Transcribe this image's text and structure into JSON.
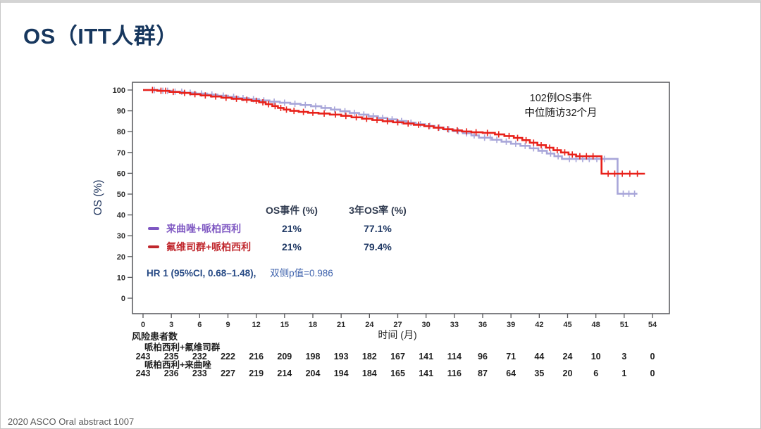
{
  "slide": {
    "title": "OS（ITT人群）",
    "footer": "2020 ASCO Oral abstract 1007"
  },
  "annotation": {
    "line1": "102例OS事件",
    "line2": "中位随访32个月"
  },
  "legend": {
    "col1_header": "OS事件 (%)",
    "col2_header": "3年OS率 (%)",
    "rows": [
      {
        "label": "来曲唑+哌柏西利",
        "os_events": "21%",
        "os_rate_3yr": "77.1%",
        "marker_color": "#7e57c2"
      },
      {
        "label": "氟维司群+哌柏西利",
        "os_events": "21%",
        "os_rate_3yr": "79.4%",
        "marker_color": "#c0272d"
      }
    ],
    "hr_text": "HR 1 (95%CI, 0.68–1.48),",
    "p_text": "双侧p值=0.986"
  },
  "chart_data": {
    "type": "line",
    "subtype": "kaplan-meier-step",
    "title": "",
    "xlabel": "时间 (月)",
    "ylabel": "OS (%)",
    "xlim": [
      0,
      54
    ],
    "ylim": [
      0,
      100
    ],
    "x_ticks": [
      0,
      3,
      6,
      9,
      12,
      15,
      18,
      21,
      24,
      27,
      30,
      33,
      36,
      39,
      42,
      45,
      48,
      51,
      54
    ],
    "y_ticks": [
      0,
      10,
      20,
      30,
      40,
      50,
      60,
      70,
      80,
      90,
      100
    ],
    "grid": false,
    "legend_position": "inside-left",
    "series": [
      {
        "name": "来曲唑+哌柏西利",
        "color": "#a8a6d9",
        "end": 52.4,
        "steps": [
          [
            0,
            100
          ],
          [
            1.8,
            99.6
          ],
          [
            3.1,
            99.2
          ],
          [
            4.4,
            98.7
          ],
          [
            5.6,
            98.3
          ],
          [
            6.8,
            97.8
          ],
          [
            7.9,
            97.3
          ],
          [
            9.0,
            96.7
          ],
          [
            10.1,
            96.1
          ],
          [
            11.2,
            95.6
          ],
          [
            12.3,
            95.0
          ],
          [
            13.4,
            94.4
          ],
          [
            14.5,
            93.9
          ],
          [
            15.6,
            93.4
          ],
          [
            16.7,
            92.8
          ],
          [
            17.8,
            92.2
          ],
          [
            18.9,
            91.4
          ],
          [
            19.9,
            90.6
          ],
          [
            20.9,
            89.8
          ],
          [
            21.9,
            89.0
          ],
          [
            22.9,
            88.2
          ],
          [
            23.9,
            87.4
          ],
          [
            24.9,
            86.6
          ],
          [
            25.9,
            85.9
          ],
          [
            26.9,
            85.1
          ],
          [
            27.9,
            84.3
          ],
          [
            28.9,
            83.6
          ],
          [
            29.9,
            82.8
          ],
          [
            30.9,
            82.0
          ],
          [
            31.9,
            81.1
          ],
          [
            32.9,
            80.2
          ],
          [
            33.9,
            79.2
          ],
          [
            34.8,
            78.2
          ],
          [
            35.6,
            77.1
          ],
          [
            37.0,
            76.1
          ],
          [
            38.0,
            75.2
          ],
          [
            39.0,
            74.2
          ],
          [
            40.0,
            73.2
          ],
          [
            41.0,
            72.0
          ],
          [
            41.9,
            70.8
          ],
          [
            42.8,
            69.5
          ],
          [
            43.6,
            68.2
          ],
          [
            44.4,
            66.9
          ],
          [
            50.3,
            50.2
          ]
        ],
        "censor_times": [
          1.2,
          2.1,
          2.6,
          3.4,
          4.1,
          5.0,
          6.2,
          7.3,
          8.5,
          9.6,
          10.6,
          11.7,
          12.8,
          13.9,
          15.0,
          16.1,
          17.2,
          18.3,
          19.3,
          20.3,
          21.4,
          22.4,
          23.4,
          24.4,
          25.4,
          26.4,
          27.4,
          28.4,
          29.4,
          30.4,
          31.4,
          32.4,
          33.4,
          34.3,
          35.1,
          36.2,
          36.8,
          37.5,
          38.5,
          39.5,
          40.5,
          41.4,
          42.3,
          43.2,
          44.0,
          45.2,
          45.9,
          46.6,
          47.3,
          48.1,
          48.9,
          50.9,
          51.5,
          52.1
        ]
      },
      {
        "name": "氟维司群+哌柏西利",
        "color": "#e8211a",
        "end": 53.2,
        "steps": [
          [
            0,
            100
          ],
          [
            1.5,
            99.6
          ],
          [
            2.8,
            99.1
          ],
          [
            3.9,
            98.6
          ],
          [
            5.0,
            98.0
          ],
          [
            6.1,
            97.4
          ],
          [
            7.2,
            96.9
          ],
          [
            8.3,
            96.3
          ],
          [
            9.4,
            95.8
          ],
          [
            10.5,
            95.3
          ],
          [
            11.5,
            94.8
          ],
          [
            12.3,
            94.1
          ],
          [
            13.0,
            93.2
          ],
          [
            13.7,
            92.3
          ],
          [
            14.3,
            91.4
          ],
          [
            14.9,
            90.6
          ],
          [
            15.6,
            90.0
          ],
          [
            16.5,
            89.5
          ],
          [
            17.5,
            89.1
          ],
          [
            18.6,
            88.7
          ],
          [
            19.8,
            88.2
          ],
          [
            21.0,
            87.6
          ],
          [
            22.1,
            86.9
          ],
          [
            23.2,
            86.2
          ],
          [
            24.3,
            85.6
          ],
          [
            25.4,
            85.0
          ],
          [
            26.5,
            84.5
          ],
          [
            27.6,
            83.9
          ],
          [
            28.7,
            83.3
          ],
          [
            29.8,
            82.6
          ],
          [
            30.8,
            81.9
          ],
          [
            31.8,
            81.2
          ],
          [
            32.8,
            80.6
          ],
          [
            33.8,
            80.1
          ],
          [
            34.8,
            79.7
          ],
          [
            36.0,
            79.4
          ],
          [
            37.3,
            78.7
          ],
          [
            38.3,
            77.9
          ],
          [
            39.3,
            77.0
          ],
          [
            40.2,
            75.9
          ],
          [
            41.0,
            74.7
          ],
          [
            41.8,
            73.5
          ],
          [
            42.7,
            72.3
          ],
          [
            43.5,
            71.1
          ],
          [
            44.3,
            70.0
          ],
          [
            45.1,
            69.0
          ],
          [
            45.9,
            68.2
          ],
          [
            48.6,
            59.8
          ]
        ],
        "censor_times": [
          1.0,
          1.9,
          2.4,
          3.2,
          4.4,
          5.5,
          6.6,
          7.7,
          8.8,
          9.9,
          11.0,
          12.0,
          12.7,
          13.3,
          14.0,
          14.6,
          15.2,
          16.0,
          17.0,
          18.0,
          19.2,
          20.4,
          21.5,
          22.6,
          23.7,
          24.8,
          25.9,
          27.0,
          28.1,
          29.2,
          30.3,
          31.3,
          32.3,
          33.3,
          34.3,
          35.3,
          36.5,
          37.7,
          38.8,
          39.7,
          40.6,
          41.4,
          42.2,
          43.1,
          43.9,
          44.7,
          45.5,
          46.3,
          47.0,
          47.7,
          49.3,
          50.0,
          50.8,
          51.6,
          52.4
        ]
      }
    ],
    "risk_table": {
      "title": "风险患者数",
      "groups": [
        {
          "label": "哌柏西利+氟维司群",
          "counts": [
            243,
            235,
            232,
            222,
            216,
            209,
            198,
            193,
            182,
            167,
            141,
            114,
            96,
            71,
            44,
            24,
            10,
            3,
            0
          ]
        },
        {
          "label": "哌柏西利+来曲唑",
          "counts": [
            243,
            236,
            233,
            227,
            219,
            214,
            204,
            194,
            184,
            165,
            141,
            116,
            87,
            64,
            35,
            20,
            6,
            1,
            0
          ]
        }
      ]
    }
  }
}
